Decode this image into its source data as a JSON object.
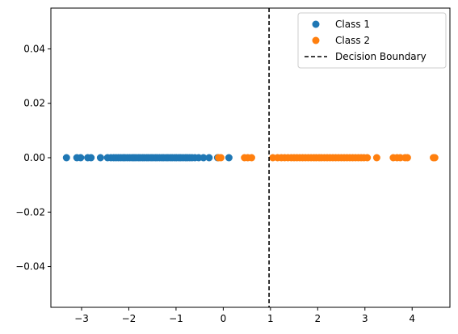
{
  "chart_data": {
    "type": "scatter",
    "title": "",
    "xlabel": "",
    "ylabel": "",
    "xlim": [
      -3.65,
      4.8
    ],
    "ylim": [
      -0.055,
      0.055
    ],
    "xticks": [
      -3,
      -2,
      -1,
      0,
      1,
      2,
      3,
      4
    ],
    "yticks": [
      -0.04,
      -0.02,
      0.0,
      0.02,
      0.04
    ],
    "xtick_labels": [
      "−3",
      "−2",
      "−1",
      "0",
      "1",
      "2",
      "3",
      "4"
    ],
    "ytick_labels": [
      "−0.04",
      "−0.02",
      "0.00",
      "0.02",
      "0.04"
    ],
    "grid": false,
    "legend_position": "top-right",
    "series": [
      {
        "name": "Class 1",
        "color": "#1f77b4",
        "x": [
          -3.32,
          -3.1,
          -3.02,
          -2.87,
          -2.8,
          -2.6,
          -2.45,
          -2.38,
          -2.32,
          -2.27,
          -2.22,
          -2.17,
          -2.12,
          -2.08,
          -2.03,
          -1.98,
          -1.93,
          -1.89,
          -1.85,
          -1.8,
          -1.76,
          -1.71,
          -1.67,
          -1.62,
          -1.58,
          -1.53,
          -1.49,
          -1.44,
          -1.4,
          -1.35,
          -1.3,
          -1.26,
          -1.21,
          -1.17,
          -1.12,
          -1.08,
          -1.03,
          -0.99,
          -0.94,
          -0.9,
          -0.85,
          -0.8,
          -0.76,
          -0.71,
          -0.66,
          -0.6,
          -0.52,
          -0.42,
          -0.3,
          -0.12,
          0.12
        ],
        "y": [
          0,
          0,
          0,
          0,
          0,
          0,
          0,
          0,
          0,
          0,
          0,
          0,
          0,
          0,
          0,
          0,
          0,
          0,
          0,
          0,
          0,
          0,
          0,
          0,
          0,
          0,
          0,
          0,
          0,
          0,
          0,
          0,
          0,
          0,
          0,
          0,
          0,
          0,
          0,
          0,
          0,
          0,
          0,
          0,
          0,
          0,
          0,
          0,
          0,
          0,
          0
        ]
      },
      {
        "name": "Class 2",
        "color": "#ff7f0e",
        "x": [
          -0.1,
          -0.05,
          0.45,
          0.52,
          0.6,
          1.05,
          1.15,
          1.23,
          1.3,
          1.37,
          1.44,
          1.5,
          1.56,
          1.62,
          1.68,
          1.74,
          1.8,
          1.86,
          1.92,
          1.97,
          2.03,
          2.08,
          2.14,
          2.2,
          2.26,
          2.32,
          2.38,
          2.44,
          2.5,
          2.56,
          2.62,
          2.68,
          2.74,
          2.8,
          2.86,
          2.92,
          2.98,
          3.05,
          3.25,
          3.6,
          3.68,
          3.75,
          3.85,
          3.9,
          4.45,
          4.48
        ],
        "y": [
          0,
          0,
          0,
          0,
          0,
          0,
          0,
          0,
          0,
          0,
          0,
          0,
          0,
          0,
          0,
          0,
          0,
          0,
          0,
          0,
          0,
          0,
          0,
          0,
          0,
          0,
          0,
          0,
          0,
          0,
          0,
          0,
          0,
          0,
          0,
          0,
          0,
          0,
          0,
          0,
          0,
          0,
          0,
          0,
          0,
          0
        ]
      }
    ],
    "reference_lines": [
      {
        "name": "Decision Boundary",
        "orientation": "vertical",
        "x": 0.97,
        "color": "#000000",
        "style": "dashed"
      }
    ],
    "legend": [
      "Class 1",
      "Class 2",
      "Decision Boundary"
    ]
  }
}
